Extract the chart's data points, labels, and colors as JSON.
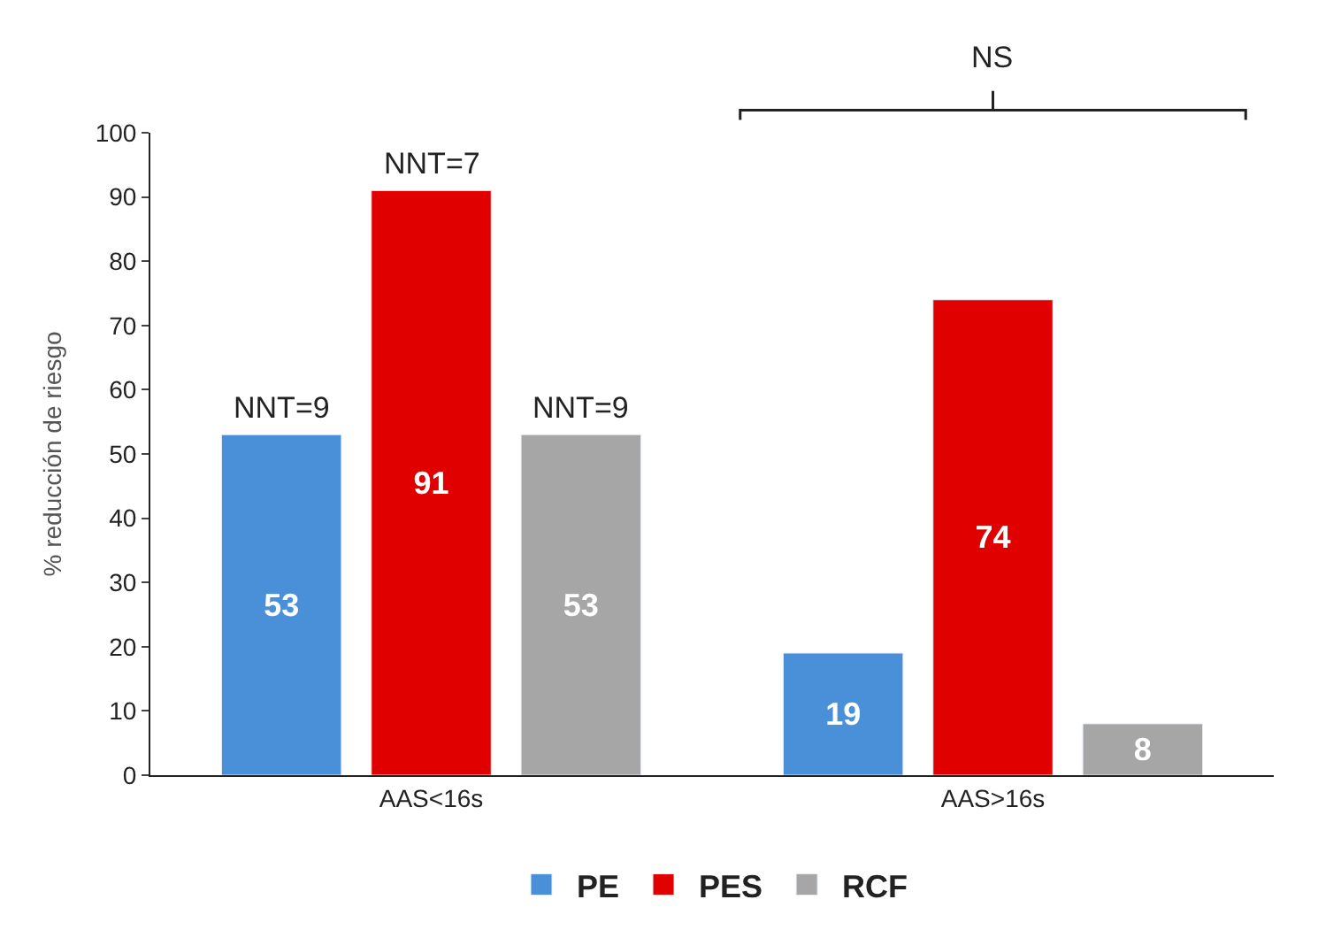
{
  "chart_data": {
    "type": "bar",
    "ylabel": "% reducción de riesgo",
    "categories": [
      "AAS<16s",
      "AAS>16s"
    ],
    "series": [
      {
        "name": "PE",
        "color": "#4a90d9",
        "values": [
          53,
          19
        ]
      },
      {
        "name": "PES",
        "color": "#e00000",
        "values": [
          91,
          74
        ]
      },
      {
        "name": "RCF",
        "color": "#a6a6a6",
        "values": [
          53,
          8
        ]
      }
    ],
    "ylim": [
      0,
      100
    ],
    "yticks": [
      0,
      10,
      20,
      30,
      40,
      50,
      60,
      70,
      80,
      90,
      100
    ],
    "data_labels": true,
    "legend": "bottom",
    "annotations": [
      "NNT=9",
      "NNT=7",
      "NNT=9",
      "NS"
    ]
  }
}
